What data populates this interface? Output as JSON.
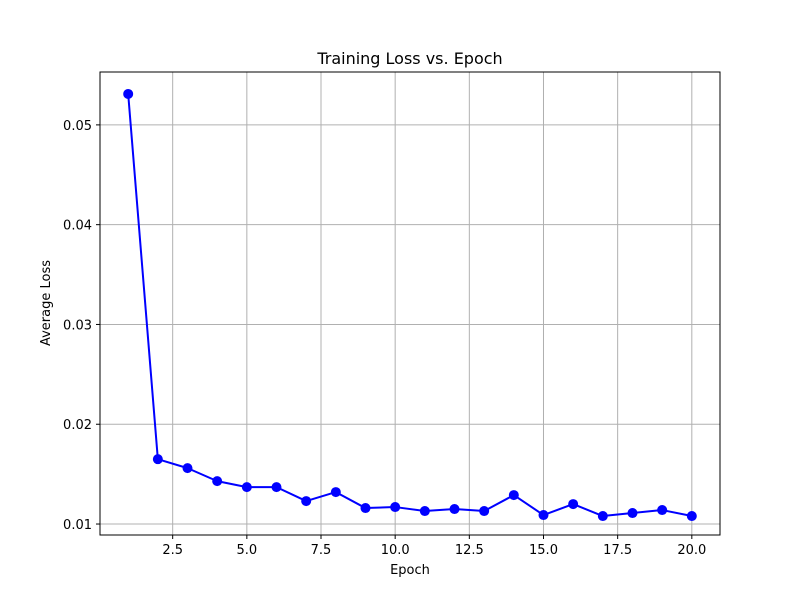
{
  "chart_data": {
    "type": "line",
    "title": "Training Loss vs. Epoch",
    "xlabel": "Epoch",
    "ylabel": "Average Loss",
    "xlim": [
      0.05,
      20.95
    ],
    "ylim": [
      0.0089,
      0.0553
    ],
    "xticks": [
      "2.5",
      "5.0",
      "7.5",
      "10.0",
      "12.5",
      "15.0",
      "17.5",
      "20.0"
    ],
    "yticks": [
      "0.01",
      "0.02",
      "0.03",
      "0.04",
      "0.05"
    ],
    "grid": true,
    "series": [
      {
        "color": "#0000ff",
        "marker": "circle",
        "x": [
          1,
          2,
          3,
          4,
          5,
          6,
          7,
          8,
          9,
          10,
          11,
          12,
          13,
          14,
          15,
          16,
          17,
          18,
          19,
          20
        ],
        "y": [
          0.0531,
          0.0165,
          0.0156,
          0.0143,
          0.0137,
          0.0137,
          0.0123,
          0.0132,
          0.0116,
          0.0117,
          0.0113,
          0.0115,
          0.0113,
          0.0129,
          0.0109,
          0.012,
          0.0108,
          0.0111,
          0.0114,
          0.0108
        ]
      }
    ]
  }
}
